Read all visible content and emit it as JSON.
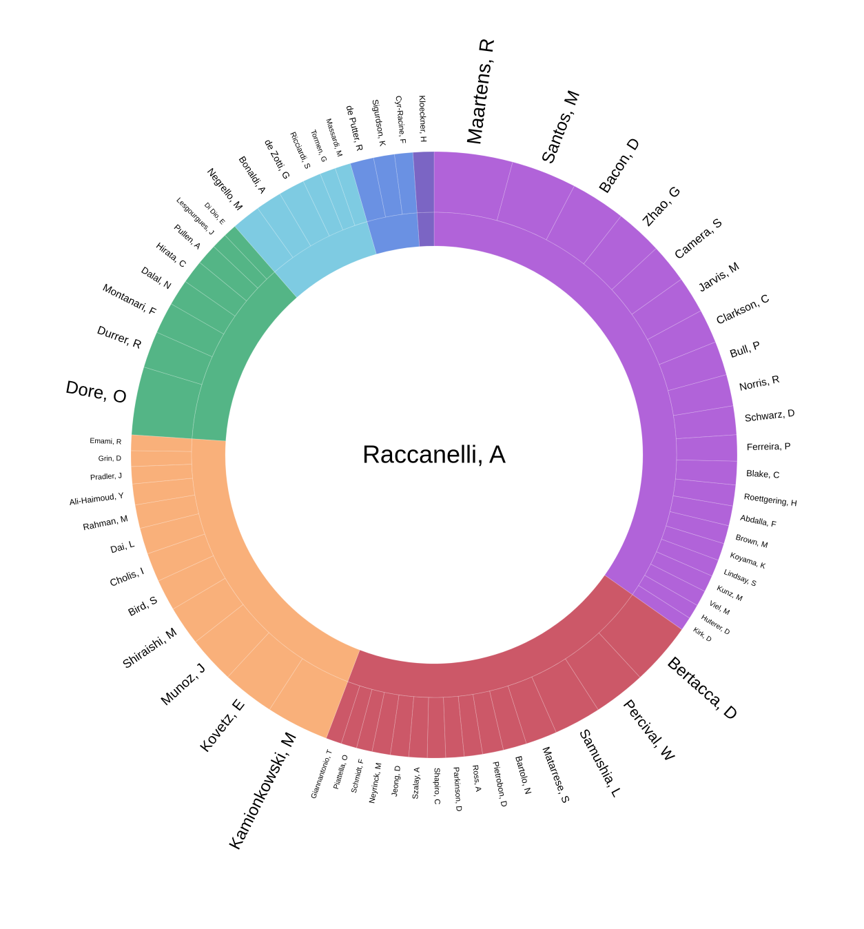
{
  "chart_data": {
    "type": "sunburst",
    "title": "Raccanelli, A",
    "groups": [
      {
        "color": "#b163d9",
        "members": [
          {
            "name": "Maartens, R",
            "value": 15
          },
          {
            "name": "Santos, M",
            "value": 12.5
          },
          {
            "name": "Bacon, D",
            "value": 10.5
          },
          {
            "name": "Zhao, G",
            "value": 9
          },
          {
            "name": "Camera, S",
            "value": 7.5
          },
          {
            "name": "Jarvis, M",
            "value": 7
          },
          {
            "name": "Clarkson, C",
            "value": 6.5
          },
          {
            "name": "Bull, P",
            "value": 6.5
          },
          {
            "name": "Norris, R",
            "value": 6
          },
          {
            "name": "Schwarz, D",
            "value": 5.5
          },
          {
            "name": "Ferreira, P",
            "value": 5
          },
          {
            "name": "Blake, C",
            "value": 4.5
          },
          {
            "name": "Roettgering, H",
            "value": 4
          },
          {
            "name": "Abdalla, F",
            "value": 3.8
          },
          {
            "name": "Brown, M",
            "value": 3.5
          },
          {
            "name": "Koyama, K",
            "value": 3.3
          },
          {
            "name": "Lindsay, S",
            "value": 3.2
          },
          {
            "name": "Kunz, M",
            "value": 3.2
          },
          {
            "name": "Viel, M",
            "value": 3
          },
          {
            "name": "Huterer, D",
            "value": 2.8
          },
          {
            "name": "Kirk, D",
            "value": 2.6
          }
        ]
      },
      {
        "color": "#cc5868",
        "members": [
          {
            "name": "Bertacca, D",
            "value": 12
          },
          {
            "name": "Percival, W",
            "value": 10
          },
          {
            "name": "Samushia, L",
            "value": 9
          },
          {
            "name": "Matarrese, S",
            "value": 6
          },
          {
            "name": "Bartolo, N",
            "value": 4.5
          },
          {
            "name": "Pietrobon, D",
            "value": 4
          },
          {
            "name": "Ross, A",
            "value": 3.5
          },
          {
            "name": "Parkinson, D",
            "value": 3.5
          },
          {
            "name": "Shapiro, C",
            "value": 3.5
          },
          {
            "name": "Szalay, A",
            "value": 3.5
          },
          {
            "name": "Jeong, D",
            "value": 3.5
          },
          {
            "name": "Neyrinck, M",
            "value": 3.5
          },
          {
            "name": "Schmidt, F",
            "value": 3
          },
          {
            "name": "Piattella, O",
            "value": 3
          },
          {
            "name": "Giannantonio, T",
            "value": 3
          }
        ]
      },
      {
        "color": "#f9b07a",
        "members": [
          {
            "name": "Kamionkowski, M",
            "value": 12
          },
          {
            "name": "Kovetz, E",
            "value": 10
          },
          {
            "name": "Munoz, J",
            "value": 9
          },
          {
            "name": "Shiraishi, M",
            "value": 7.5
          },
          {
            "name": "Bird, S",
            "value": 6
          },
          {
            "name": "Cholis, I",
            "value": 5.5
          },
          {
            "name": "Dai, L",
            "value": 5
          },
          {
            "name": "Rahman, M",
            "value": 4.5
          },
          {
            "name": "Ali-Haimoud, Y",
            "value": 4
          },
          {
            "name": "Pradler, J",
            "value": 3.3
          },
          {
            "name": "Grin, D",
            "value": 3
          },
          {
            "name": "Emami, R",
            "value": 3
          }
        ]
      },
      {
        "color": "#54b586",
        "members": [
          {
            "name": "Dore, O",
            "value": 13
          },
          {
            "name": "Durrer, R",
            "value": 7
          },
          {
            "name": "Montanari, F",
            "value": 6
          },
          {
            "name": "Dalal, N",
            "value": 5
          },
          {
            "name": "Hirata, C",
            "value": 4.5
          },
          {
            "name": "Pullen, A",
            "value": 4
          },
          {
            "name": "Lesgourgues, J",
            "value": 3
          },
          {
            "name": "Di Dio, E",
            "value": 2.5
          }
        ]
      },
      {
        "color": "#7ecbe2",
        "members": [
          {
            "name": "Negrello, M",
            "value": 5.5
          },
          {
            "name": "Bonaldi, A",
            "value": 5
          },
          {
            "name": "de Zotti, G",
            "value": 5
          },
          {
            "name": "Ricciardi, S",
            "value": 3.5
          },
          {
            "name": "Tormen, G",
            "value": 3
          },
          {
            "name": "Massardi, M",
            "value": 3
          }
        ]
      },
      {
        "color": "#6a91e3",
        "members": [
          {
            "name": "de Putter, R",
            "value": 4.5
          },
          {
            "name": "Sigurdson, K",
            "value": 4
          },
          {
            "name": "Cyr-Racine, F",
            "value": 3.5
          }
        ]
      },
      {
        "color": "#7b65c4",
        "members": [
          {
            "name": "Kloeckner, H",
            "value": 4
          }
        ]
      }
    ]
  }
}
